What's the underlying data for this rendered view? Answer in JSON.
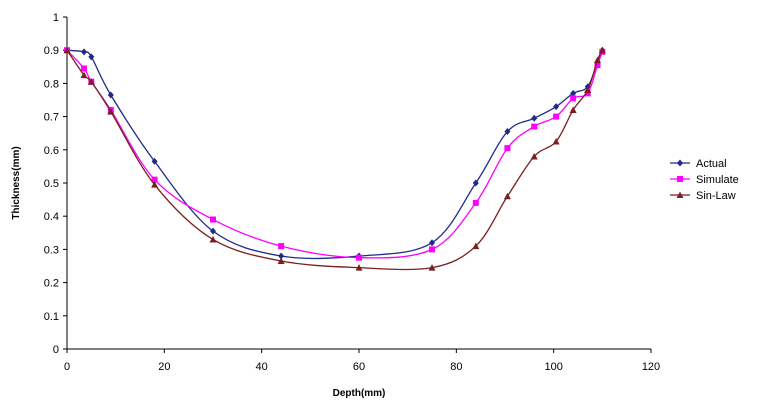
{
  "chart_data": {
    "type": "line",
    "title": "",
    "xlabel": "Depth(mm)",
    "ylabel": "Thickness(mm)",
    "xlim": [
      0,
      120
    ],
    "ylim": [
      0,
      1
    ],
    "x_ticks": [
      "0",
      "20",
      "40",
      "60",
      "80",
      "100",
      "120"
    ],
    "y_ticks": [
      "0",
      "0.1",
      "0.2",
      "0.3",
      "0.4",
      "0.5",
      "0.6",
      "0.7",
      "0.8",
      "0.9",
      "1"
    ],
    "grid": "none",
    "legend_position": "right",
    "series": [
      {
        "name": "Actual",
        "color": "#1f2a8a",
        "marker": "diamond",
        "x": [
          0,
          3.5,
          5,
          9,
          18,
          30,
          44,
          60,
          75,
          84,
          90.5,
          96,
          100.5,
          104,
          107,
          109,
          110
        ],
        "y": [
          0.9,
          0.895,
          0.88,
          0.765,
          0.565,
          0.355,
          0.28,
          0.28,
          0.32,
          0.5,
          0.655,
          0.695,
          0.73,
          0.77,
          0.79,
          0.865,
          0.9
        ]
      },
      {
        "name": "Simulate",
        "color": "#ff00ff",
        "marker": "square",
        "x": [
          0,
          3.5,
          5,
          9,
          18,
          30,
          44,
          60,
          75,
          84,
          90.5,
          96,
          100.5,
          104,
          107,
          109,
          110
        ],
        "y": [
          0.9,
          0.845,
          0.805,
          0.72,
          0.51,
          0.39,
          0.31,
          0.275,
          0.3,
          0.44,
          0.605,
          0.67,
          0.7,
          0.755,
          0.77,
          0.855,
          0.895
        ]
      },
      {
        "name": "Sin-Law",
        "color": "#7a1f1f",
        "marker": "triangle",
        "x": [
          0,
          3.5,
          5,
          9,
          18,
          30,
          44,
          60,
          75,
          84,
          90.5,
          96,
          100.5,
          104,
          107,
          109,
          110
        ],
        "y": [
          0.9,
          0.825,
          0.805,
          0.715,
          0.495,
          0.33,
          0.265,
          0.245,
          0.245,
          0.31,
          0.46,
          0.58,
          0.625,
          0.72,
          0.78,
          0.87,
          0.9
        ]
      }
    ]
  }
}
